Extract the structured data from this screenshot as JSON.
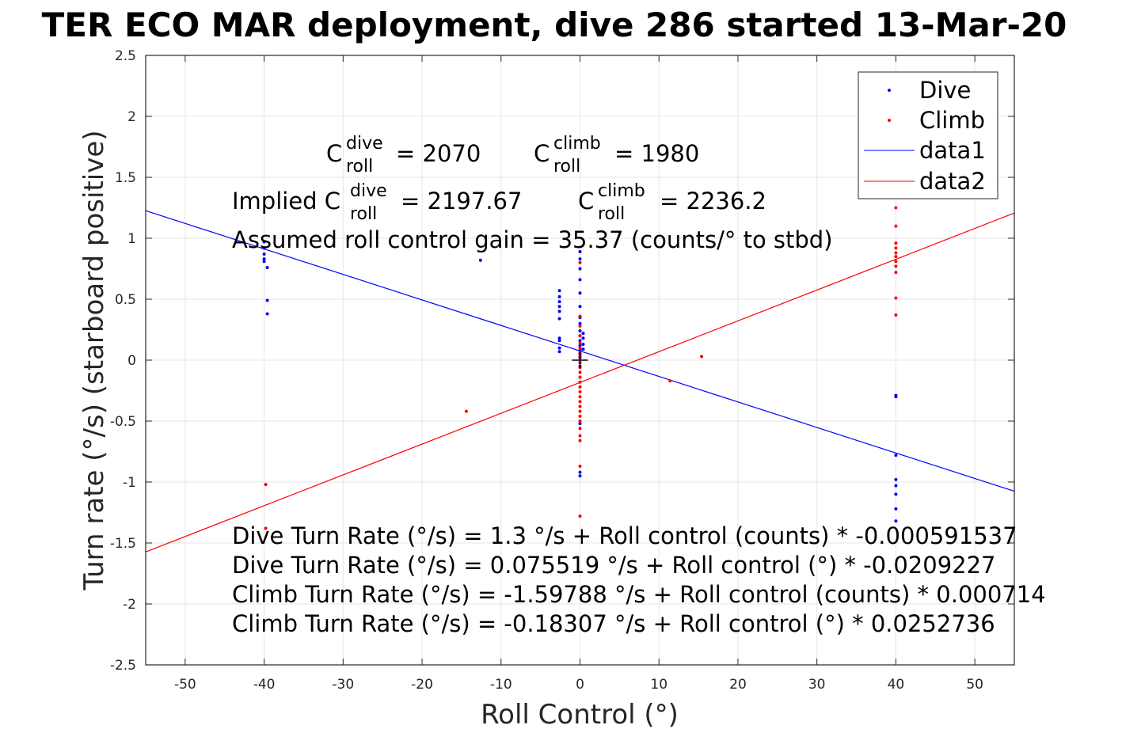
{
  "title": "TER ECO MAR deployment, dive 286 started 13-Mar-20",
  "chart_data": {
    "type": "scatter",
    "title": "TER ECO MAR deployment, dive 286 started 13-Mar-20",
    "xlabel": "Roll Control (°)",
    "ylabel": "Turn rate (°/s) (starboard positive)",
    "xlim": [
      -55,
      55
    ],
    "ylim": [
      -2.5,
      2.5
    ],
    "xticks": [
      -50,
      -40,
      -30,
      -20,
      -10,
      0,
      10,
      20,
      30,
      40,
      50
    ],
    "yticks": [
      2.5,
      2,
      1.5,
      1,
      0.5,
      0,
      -0.5,
      -1,
      -1.5,
      -2,
      -2.5
    ],
    "xtick_labels": [
      "-50",
      "-40",
      "-30",
      "-20",
      "-10",
      "0",
      "10",
      "20",
      "30",
      "40",
      "50"
    ],
    "ytick_labels": [
      "2.5",
      "2",
      "1.5",
      "1",
      "0.5",
      "0",
      "-0.5",
      "-1",
      "-1.5",
      "-2",
      "-2.5"
    ],
    "grid": true,
    "legend_position": "top-right",
    "series": [
      {
        "name": "Dive",
        "kind": "points",
        "color": "#0000ff",
        "points": [
          [
            -40,
            0.97
          ],
          [
            -40,
            0.92
          ],
          [
            -40,
            0.87
          ],
          [
            -40,
            0.83
          ],
          [
            -40,
            0.81
          ],
          [
            -39.6,
            0.76
          ],
          [
            -39.6,
            0.49
          ],
          [
            -39.6,
            0.38
          ],
          [
            -12.6,
            0.82
          ],
          [
            -2.6,
            0.57
          ],
          [
            -2.6,
            0.52
          ],
          [
            -2.6,
            0.48
          ],
          [
            -2.6,
            0.44
          ],
          [
            -2.6,
            0.4
          ],
          [
            -2.6,
            0.34
          ],
          [
            -2.6,
            0.18
          ],
          [
            -2.6,
            0.16
          ],
          [
            -2.6,
            0.1
          ],
          [
            -2.6,
            0.07
          ],
          [
            0,
            0.89
          ],
          [
            0,
            0.83
          ],
          [
            0,
            0.75
          ],
          [
            0,
            0.66
          ],
          [
            0,
            0.55
          ],
          [
            0,
            0.44
          ],
          [
            0,
            0.35
          ],
          [
            0,
            0.3
          ],
          [
            0,
            0.24
          ],
          [
            0,
            0.2
          ],
          [
            0,
            0.16
          ],
          [
            0,
            0.12
          ],
          [
            0,
            0.08
          ],
          [
            0,
            0.05
          ],
          [
            0,
            0.02
          ],
          [
            0,
            -0.02
          ],
          [
            0,
            -0.05
          ],
          [
            0,
            -0.52
          ],
          [
            0,
            -0.92
          ],
          [
            0,
            -0.95
          ],
          [
            0.4,
            0.22
          ],
          [
            0.4,
            0.18
          ],
          [
            0.4,
            0.13
          ],
          [
            0.4,
            0.09
          ],
          [
            40,
            -0.29
          ],
          [
            40,
            -0.3
          ],
          [
            40,
            -0.78
          ],
          [
            40,
            -0.98
          ],
          [
            40,
            -1.03
          ],
          [
            40,
            -1.1
          ],
          [
            40,
            -1.22
          ],
          [
            40,
            -1.32
          ]
        ]
      },
      {
        "name": "Climb",
        "kind": "points",
        "color": "#ff0000",
        "points": [
          [
            -39.8,
            -1.02
          ],
          [
            -39.8,
            -1.38
          ],
          [
            -14.4,
            -0.42
          ],
          [
            0,
            0.8
          ],
          [
            0,
            0.36
          ],
          [
            0,
            0.28
          ],
          [
            0,
            0.2
          ],
          [
            0,
            0.14
          ],
          [
            0,
            0.1
          ],
          [
            0,
            0.06
          ],
          [
            0,
            0.03
          ],
          [
            0,
            -0.02
          ],
          [
            0,
            -0.06
          ],
          [
            0,
            -0.1
          ],
          [
            0,
            -0.14
          ],
          [
            0,
            -0.18
          ],
          [
            0,
            -0.22
          ],
          [
            0,
            -0.26
          ],
          [
            0,
            -0.3
          ],
          [
            0,
            -0.34
          ],
          [
            0,
            -0.38
          ],
          [
            0,
            -0.42
          ],
          [
            0,
            -0.46
          ],
          [
            0,
            -0.5
          ],
          [
            0,
            -0.56
          ],
          [
            0,
            -0.62
          ],
          [
            0,
            -0.66
          ],
          [
            0,
            -0.87
          ],
          [
            0,
            -1.28
          ],
          [
            11.4,
            -0.17
          ],
          [
            15.4,
            0.03
          ],
          [
            40,
            1.25
          ],
          [
            40,
            1.1
          ],
          [
            40,
            0.96
          ],
          [
            40,
            0.92
          ],
          [
            40,
            0.88
          ],
          [
            40,
            0.85
          ],
          [
            40,
            0.81
          ],
          [
            40,
            0.77
          ],
          [
            40,
            0.72
          ],
          [
            40,
            0.51
          ],
          [
            40,
            0.37
          ]
        ]
      },
      {
        "name": "data1",
        "kind": "line",
        "color": "#0000ff",
        "intercept": 0.075519,
        "slope": -0.0209227
      },
      {
        "name": "data2",
        "kind": "line",
        "color": "#ff0000",
        "intercept": -0.18307,
        "slope": 0.0252736
      }
    ],
    "marker": {
      "kind": "plus",
      "x": 0,
      "y": 0,
      "color": "#000000"
    }
  },
  "annotations": {
    "c": "C",
    "roll_sub": "roll",
    "dive_sup": "dive",
    "climb_sup": "climb",
    "c_dive_value": "= 2070",
    "c_climb_value": "= 1980",
    "implied_prefix": "Implied C",
    "implied_dive_value": "= 2197.67",
    "implied_climb_value": "= 2236.2",
    "gain_line": "Assumed roll control gain = 35.37 (counts/° to stbd)",
    "equations": [
      "Dive Turn Rate (°/s) = 1.3 °/s + Roll control (counts) * -0.000591537",
      "Dive Turn Rate (°/s) = 0.075519 °/s + Roll control (°) * -0.0209227",
      "Climb Turn Rate (°/s) = -1.59788 °/s + Roll control (counts) * 0.000714",
      "Climb Turn Rate (°/s) = -0.18307 °/s + Roll control (°) * 0.0252736"
    ]
  },
  "legend": {
    "entries": [
      "Dive",
      "Climb",
      "data1",
      "data2"
    ]
  }
}
